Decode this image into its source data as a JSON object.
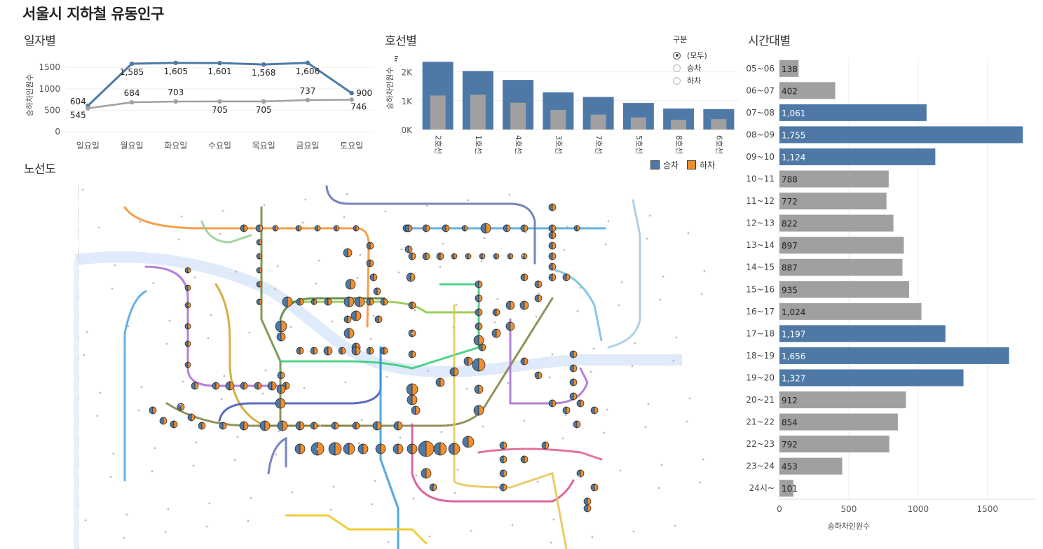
{
  "page_title": "서울시 지하철 유동인구",
  "sections": {
    "daily": "일자별",
    "by_line": "호선별",
    "hourly": "시간대별",
    "map": "노선도"
  },
  "filter": {
    "title": "구분",
    "options": [
      "(모두)",
      "승차",
      "하차"
    ],
    "selected": "(모두)"
  },
  "legend": [
    {
      "label": "승차",
      "color": "#4e79a7"
    },
    {
      "label": "하차",
      "color": "#f28e2b"
    }
  ],
  "colors": {
    "primary": "#4e79a7",
    "secondary": "#a0a0a0",
    "accent_orange": "#f28e2b"
  },
  "chart_data": [
    {
      "id": "daily",
      "type": "line",
      "x": [
        "일요일",
        "월요일",
        "화요일",
        "수요일",
        "목요일",
        "금요일",
        "토요일"
      ],
      "series": [
        {
          "values": [
            604,
            1585,
            1605,
            1601,
            1568,
            1606,
            900
          ],
          "labels": [
            "604",
            "1,585",
            "1,605",
            "1,601",
            "1,568",
            "1,606",
            "900"
          ],
          "color": "#4e79a7"
        },
        {
          "values": [
            545,
            684,
            703,
            705,
            705,
            737,
            746
          ],
          "labels": [
            "545",
            "684",
            "703",
            "705",
            "705",
            "737",
            "746"
          ],
          "color": "#a0a0a0"
        }
      ],
      "ylabel": "승하차인원수",
      "yticks": [
        "0",
        "500",
        "1000",
        "1500"
      ],
      "ylim": [
        0,
        1700
      ]
    },
    {
      "id": "by_line",
      "type": "bar",
      "categories": [
        "2호선",
        "1호선",
        "4호선",
        "3호선",
        "7호선",
        "5호선",
        "8호선",
        "6호선"
      ],
      "series": [
        {
          "values": [
            2350,
            2030,
            1720,
            1290,
            1130,
            920,
            730,
            710
          ],
          "color": "#4e79a7"
        },
        {
          "values": [
            1180,
            1210,
            930,
            680,
            520,
            420,
            340,
            360
          ],
          "color": "#a0a0a0"
        }
      ],
      "ylabel": "승하차인원수",
      "yticks": [
        "0K",
        "1K",
        "2K"
      ],
      "ylim": [
        0,
        2500
      ]
    },
    {
      "id": "hourly",
      "type": "bar",
      "orientation": "horizontal",
      "categories": [
        "05~06",
        "06~07",
        "07~08",
        "08~09",
        "09~10",
        "10~11",
        "11~12",
        "12~13",
        "13~14",
        "14~15",
        "15~16",
        "16~17",
        "17~18",
        "18~19",
        "19~20",
        "20~21",
        "21~22",
        "22~23",
        "23~24",
        "24시~"
      ],
      "values": [
        138,
        402,
        1061,
        1755,
        1124,
        788,
        772,
        822,
        897,
        887,
        935,
        1024,
        1197,
        1656,
        1327,
        912,
        854,
        792,
        453,
        101
      ],
      "labels": [
        "138",
        "402",
        "1,061",
        "1,755",
        "1,124",
        "788",
        "772",
        "822",
        "897",
        "887",
        "935",
        "1,024",
        "1,197",
        "1,656",
        "1,327",
        "912",
        "854",
        "792",
        "453",
        "101"
      ],
      "highlighted": [
        "07~08",
        "08~09",
        "09~10",
        "17~18",
        "18~19",
        "19~20"
      ],
      "xlabel": "승하차인원수",
      "xticks": [
        "0",
        "500",
        "1000",
        "1500"
      ],
      "xlim": [
        0,
        1850
      ]
    }
  ]
}
